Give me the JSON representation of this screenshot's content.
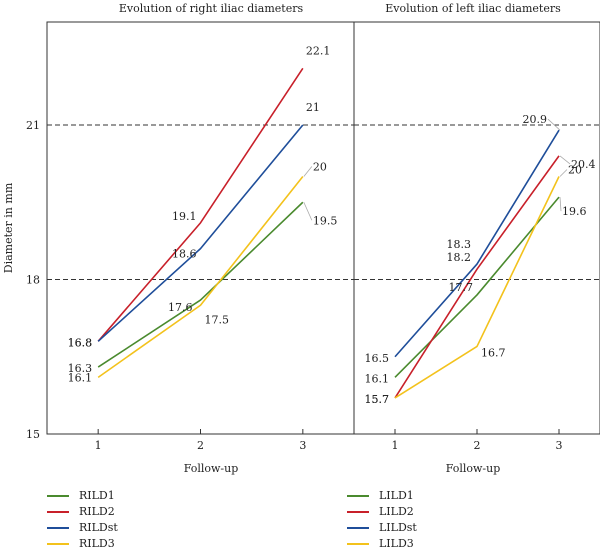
{
  "chart_data": [
    {
      "type": "line",
      "title": "Evolution of right iliac diameters",
      "xlabel": "Follow-up",
      "ylabel": "Diameter in mm",
      "x": [
        1,
        2,
        3
      ],
      "xlim": [
        0.5,
        3.5
      ],
      "ylim": [
        15,
        23
      ],
      "xticks": [
        "1",
        "2",
        "3"
      ],
      "yticks": [
        "15",
        "18",
        "21"
      ],
      "reference_lines": [
        18,
        21
      ],
      "legend_position": "bottom",
      "series": [
        {
          "name": "RILD1",
          "color": "#4a8a2e",
          "values": [
            16.3,
            17.6,
            19.5
          ],
          "labels": [
            "16.3",
            "17.6",
            "19.5"
          ]
        },
        {
          "name": "RILD2",
          "color": "#c8202a",
          "values": [
            16.8,
            19.1,
            22.1
          ],
          "labels": [
            "16.8",
            "19.1",
            "22.1"
          ]
        },
        {
          "name": "RILDst",
          "color": "#1f4e9a",
          "values": [
            16.8,
            18.6,
            21
          ],
          "labels": [
            "16.8",
            "18.6",
            "21"
          ]
        },
        {
          "name": "RILD3",
          "color": "#f3c21c",
          "values": [
            16.1,
            17.5,
            20
          ],
          "labels": [
            "16.1",
            "17.5",
            "20"
          ]
        }
      ]
    },
    {
      "type": "line",
      "title": "Evolution of left iliac diameters",
      "xlabel": "Follow-up",
      "ylabel": "",
      "x": [
        1,
        2,
        3
      ],
      "xlim": [
        0.5,
        3.5
      ],
      "ylim": [
        15,
        23
      ],
      "xticks": [
        "1",
        "2",
        "3"
      ],
      "reference_lines": [
        18,
        21
      ],
      "legend_position": "bottom",
      "series": [
        {
          "name": "LILD1",
          "color": "#4a8a2e",
          "values": [
            16.1,
            17.7,
            19.6
          ],
          "labels": [
            "16.1",
            "17.7",
            "19.6"
          ]
        },
        {
          "name": "LILD2",
          "color": "#c8202a",
          "values": [
            15.7,
            18.2,
            20.4
          ],
          "labels": [
            "15.7",
            "18.2",
            "20.4"
          ]
        },
        {
          "name": "LILDst",
          "color": "#1f4e9a",
          "values": [
            16.5,
            18.3,
            20.9
          ],
          "labels": [
            "16.5",
            "18.3",
            "20.9"
          ]
        },
        {
          "name": "LILD3",
          "color": "#f3c21c",
          "values": [
            15.7,
            16.7,
            20
          ],
          "labels": [
            "15.7",
            "16.7",
            "20"
          ]
        }
      ]
    }
  ]
}
